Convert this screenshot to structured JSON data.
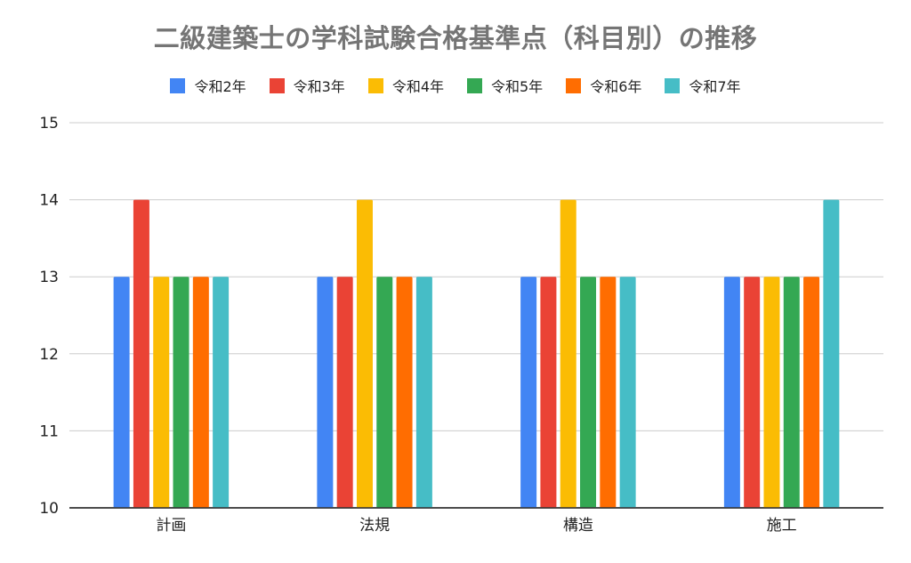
{
  "chart_data": {
    "type": "bar",
    "title": "二級建築士の学科試験合格基準点（科目別）の推移",
    "categories": [
      "計画",
      "法規",
      "構造",
      "施工"
    ],
    "series": [
      {
        "name": "令和2年",
        "color": "#4285F4",
        "values": [
          13,
          13,
          13,
          13
        ]
      },
      {
        "name": "令和3年",
        "color": "#EA4335",
        "values": [
          14,
          13,
          13,
          13
        ]
      },
      {
        "name": "令和4年",
        "color": "#FBBC04",
        "values": [
          13,
          14,
          14,
          13
        ]
      },
      {
        "name": "令和5年",
        "color": "#34A853",
        "values": [
          13,
          13,
          13,
          13
        ]
      },
      {
        "name": "令和6年",
        "color": "#FF6D01",
        "values": [
          13,
          13,
          13,
          13
        ]
      },
      {
        "name": "令和7年",
        "color": "#46BDC6",
        "values": [
          13,
          13,
          13,
          14
        ]
      }
    ],
    "xlabel": "",
    "ylabel": "",
    "ylim": [
      10,
      15
    ],
    "yticks": [
      "10",
      "11",
      "12",
      "13",
      "14",
      "15"
    ],
    "grid": true,
    "legend_position": "top-center"
  }
}
